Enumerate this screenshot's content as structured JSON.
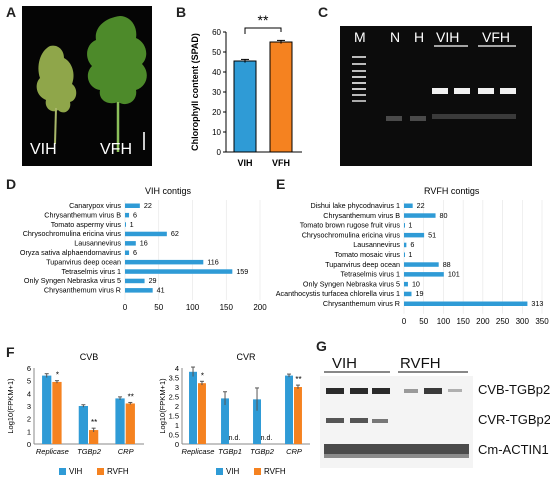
{
  "panels": {
    "A": "A",
    "B": "B",
    "C": "C",
    "D": "D",
    "E": "E",
    "F": "F",
    "G": "G"
  },
  "panelA": {
    "left_label": "VIH",
    "right_label": "VFH"
  },
  "panelB": {
    "significance": "**"
  },
  "panelC": {
    "lanes": [
      "M",
      "N",
      "H",
      "VIH",
      "VFH"
    ]
  },
  "panelG": {
    "group_labels": [
      "VIH",
      "RVFH"
    ],
    "bands": [
      "CVB-TGBp2",
      "CVR-TGBp2",
      "Cm-ACTIN1"
    ]
  },
  "colors": {
    "vih": "#2f9bd6",
    "rvfh": "#f58220",
    "bar": "#2f9bd6"
  },
  "chart_data": [
    {
      "id": "B",
      "type": "bar",
      "categories": [
        "VIH",
        "VFH"
      ],
      "values": [
        45.5,
        55
      ],
      "errors": [
        0.8,
        0.8
      ],
      "ylabel": "Chlorophyll content (SPAD)",
      "ylim": [
        0,
        60
      ],
      "yticks": [
        0,
        10,
        20,
        30,
        40,
        50,
        60
      ],
      "bar_colors": [
        "#2f9bd6",
        "#f58220"
      ],
      "annotation": "**"
    },
    {
      "id": "D",
      "type": "bar",
      "orientation": "horizontal",
      "title": "VIH contigs",
      "categories": [
        "Canarypox virus",
        "Chrysanthemum virus B",
        "Tomato aspermy virus",
        "Chrysochromulina ericina virus",
        "Lausannevirus",
        "Oryza sativa alphaendornavirus",
        "Tupanvirus deep ocean",
        "Tetraselmis virus 1",
        "Only Syngen Nebraska virus 5",
        "Chrysanthemum virus R"
      ],
      "values": [
        22,
        6,
        1,
        62,
        16,
        6,
        116,
        159,
        29,
        41
      ],
      "xlim": [
        0,
        200
      ],
      "xticks": [
        0,
        50,
        100,
        150,
        200
      ]
    },
    {
      "id": "E",
      "type": "bar",
      "orientation": "horizontal",
      "title": "RVFH contigs",
      "categories": [
        "Dishui lake phycodnavirus 1",
        "Chrysanthemum virus B",
        "Tomato brown rugose fruit virus",
        "Chrysochromulina ericina virus",
        "Lausannevirus",
        "Tomato mosaic virus",
        "Tupanvirus deep ocean",
        "Tetraselmis virus 1",
        "Only Syngen Nebraska virus 5",
        "Acanthocystis turfacea chlorella virus 1",
        "Chrysanthemum virus R"
      ],
      "values": [
        22,
        80,
        1,
        51,
        6,
        1,
        88,
        101,
        10,
        19,
        313
      ],
      "xlim": [
        0,
        350
      ],
      "xticks": [
        0,
        50,
        100,
        150,
        200,
        250,
        300,
        350
      ]
    },
    {
      "id": "F1",
      "type": "bar",
      "title": "CVB",
      "categories": [
        "Replicase",
        "TGBp2",
        "CRP"
      ],
      "series": [
        {
          "name": "VIH",
          "values": [
            5.4,
            3.0,
            3.6
          ],
          "errors": [
            0.15,
            0.1,
            0.12
          ]
        },
        {
          "name": "RVFH",
          "values": [
            4.9,
            1.1,
            3.2
          ],
          "errors": [
            0.1,
            0.15,
            0.08
          ]
        }
      ],
      "marks": [
        [
          "*",
          ""
        ],
        [
          "**",
          ""
        ],
        [
          "**",
          ""
        ]
      ],
      "ylabel": "Log10(FPKM+1)",
      "ylim": [
        0,
        6
      ],
      "yticks": [
        0,
        1,
        2,
        3,
        4,
        5,
        6
      ]
    },
    {
      "id": "F2",
      "type": "bar",
      "title": "CVR",
      "categories": [
        "Replicase",
        "TGBp1",
        "TGBp2",
        "CRP"
      ],
      "series": [
        {
          "name": "VIH",
          "values": [
            3.8,
            2.4,
            2.35,
            3.6
          ],
          "errors": [
            0.25,
            0.35,
            0.6,
            0.08
          ]
        },
        {
          "name": "RVFH",
          "values": [
            3.2,
            0,
            0,
            3.0
          ],
          "errors": [
            0.1,
            0,
            0,
            0.1
          ]
        }
      ],
      "marks": [
        "*",
        "n.d.",
        "n.d.",
        "**"
      ],
      "ylabel": "Log10(FPKM+1)",
      "ylim": [
        0,
        4
      ],
      "yticks": [
        0,
        0.5,
        1,
        1.5,
        2,
        2.5,
        3,
        3.5,
        4
      ]
    }
  ]
}
